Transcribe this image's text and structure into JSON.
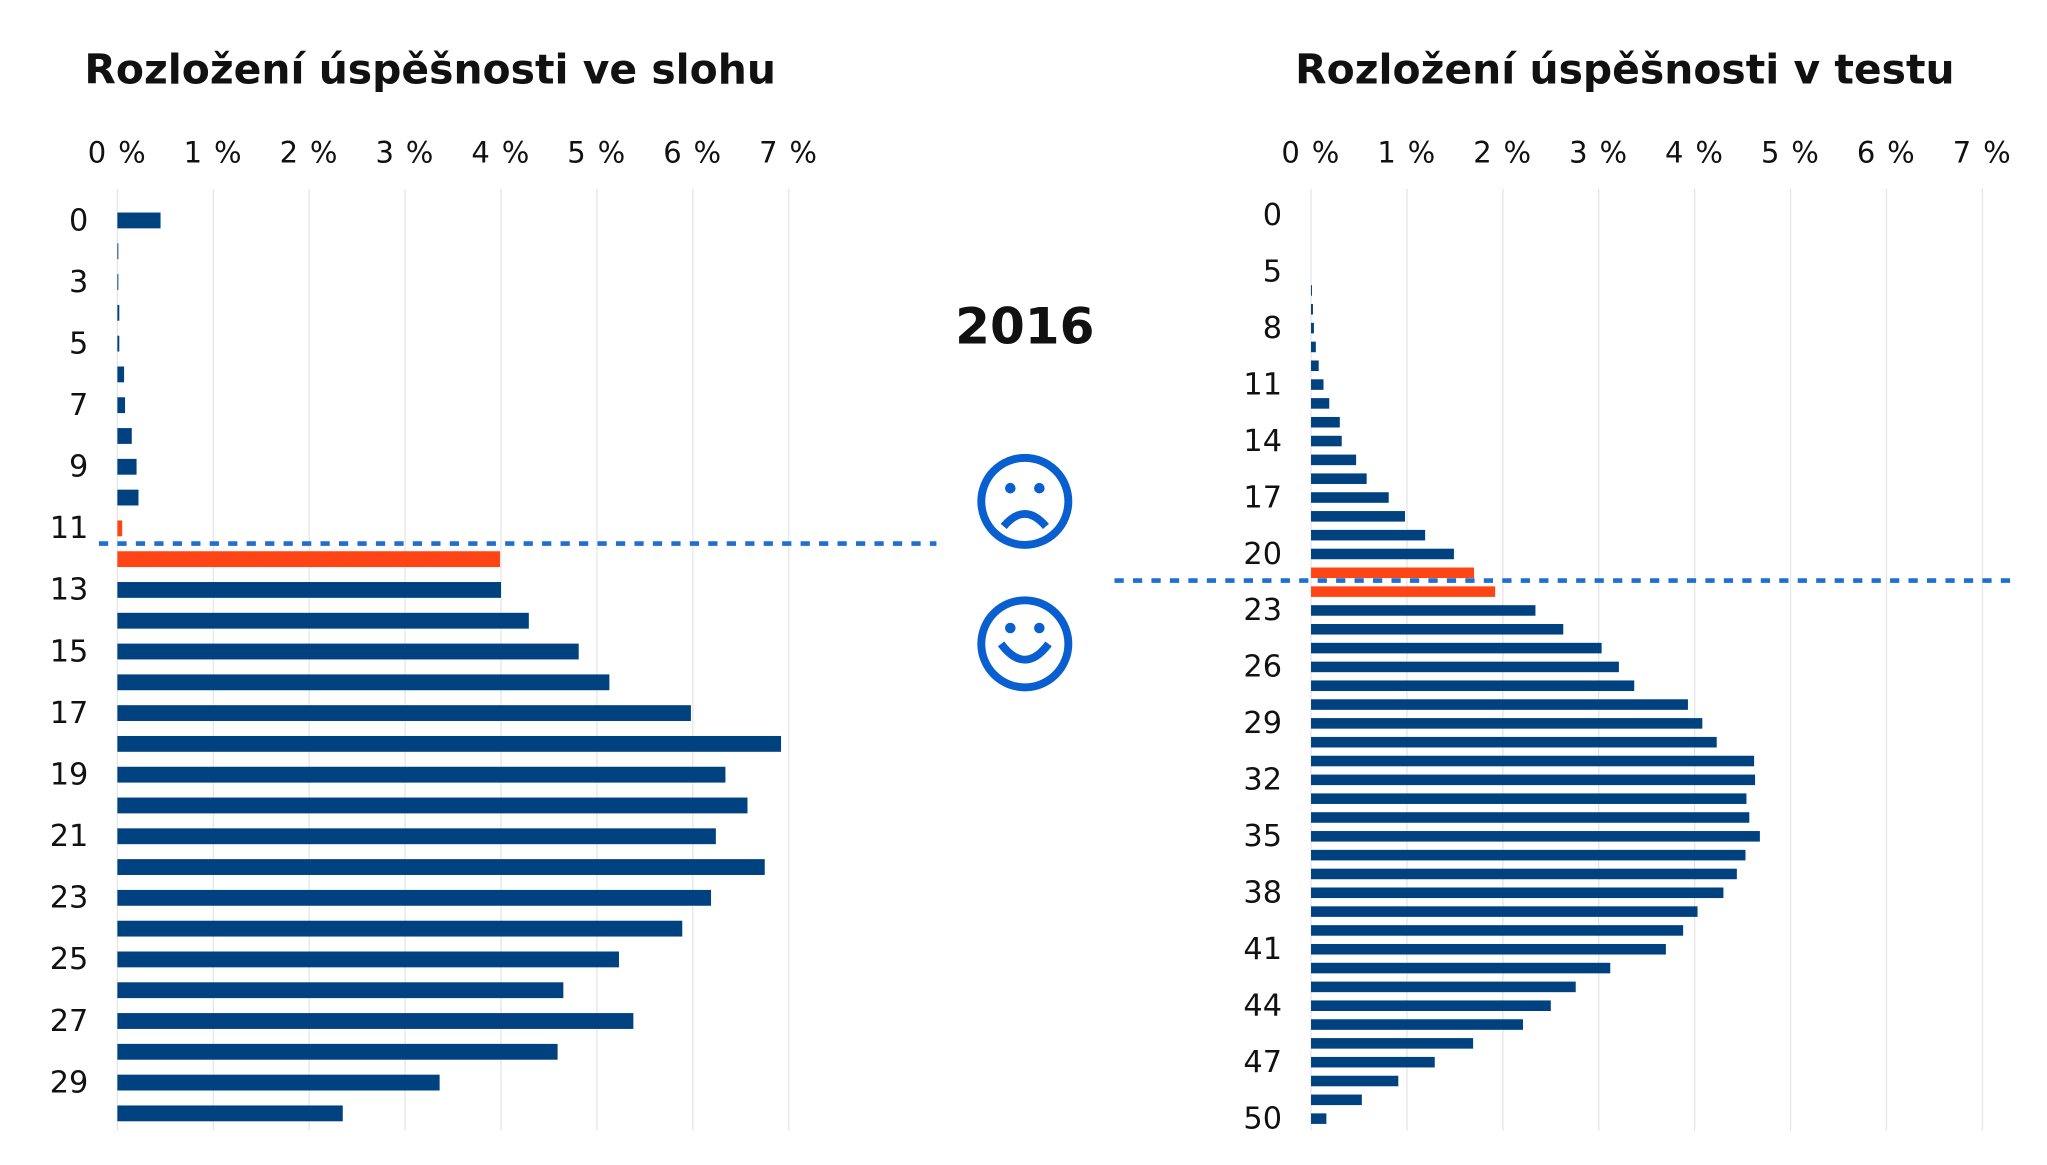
{
  "center_label": "2016",
  "chart_data": [
    {
      "type": "bar",
      "title": "Rozložení úspěšnosti ve slohu",
      "categories": [
        0,
        null,
        3,
        null,
        5,
        null,
        7,
        null,
        9,
        null,
        11,
        null,
        13,
        null,
        15,
        null,
        17,
        null,
        19,
        null,
        21,
        null,
        23,
        null,
        25,
        null,
        27,
        null,
        29,
        null
      ],
      "values": [
        0.45,
        0.01,
        0.01,
        0.02,
        0.02,
        0.07,
        0.08,
        0.15,
        0.2,
        0.22,
        0.05,
        3.99,
        4.0,
        4.29,
        4.81,
        5.13,
        5.98,
        6.92,
        6.34,
        6.57,
        6.24,
        6.75,
        6.19,
        5.89,
        5.23,
        4.65,
        5.38,
        4.59,
        3.36,
        2.35
      ],
      "colors": [
        "#00417f",
        "#00417f",
        "#00417f",
        "#00417f",
        "#00417f",
        "#00417f",
        "#00417f",
        "#00417f",
        "#00417f",
        "#00417f",
        "#ff4516",
        "#ff4516",
        "#00417f",
        "#00417f",
        "#00417f",
        "#00417f",
        "#00417f",
        "#00417f",
        "#00417f",
        "#00417f",
        "#00417f",
        "#00417f",
        "#00417f",
        "#00417f",
        "#00417f",
        "#00417f",
        "#00417f",
        "#00417f",
        "#00417f",
        "#00417f"
      ],
      "xlim": [
        0,
        7
      ],
      "xticks": [
        {
          "value": 0,
          "label": "0 %"
        },
        {
          "value": 1,
          "label": "1 %"
        },
        {
          "value": 2,
          "label": "2 %"
        },
        {
          "value": 3,
          "label": "3 %"
        },
        {
          "value": 4,
          "label": "4 %"
        },
        {
          "value": 5,
          "label": "5 %"
        },
        {
          "value": 6,
          "label": "6 %"
        },
        {
          "value": 7,
          "label": "7 %"
        }
      ],
      "grid": true
    },
    {
      "type": "bar",
      "title": "Rozložení úspěšnosti v testu",
      "categories": [
        0,
        null,
        null,
        5,
        null,
        null,
        8,
        null,
        null,
        11,
        null,
        null,
        14,
        null,
        null,
        17,
        null,
        null,
        20,
        null,
        null,
        23,
        null,
        null,
        26,
        null,
        null,
        29,
        null,
        null,
        32,
        null,
        null,
        35,
        null,
        null,
        38,
        null,
        null,
        41,
        null,
        null,
        44,
        null,
        null,
        47,
        null,
        null,
        50
      ],
      "values": [
        0,
        0,
        0,
        0,
        0.01,
        0.02,
        0.03,
        0.05,
        0.08,
        0.13,
        0.19,
        0.3,
        0.32,
        0.47,
        0.58,
        0.81,
        0.98,
        1.19,
        1.49,
        1.7,
        1.92,
        2.34,
        2.63,
        3.03,
        3.21,
        3.37,
        3.93,
        4.08,
        4.23,
        4.62,
        4.63,
        4.54,
        4.57,
        4.68,
        4.53,
        4.44,
        4.3,
        4.03,
        3.88,
        3.7,
        3.12,
        2.76,
        2.5,
        2.21,
        1.69,
        1.29,
        0.91,
        0.53,
        0.16
      ],
      "colors": [
        "#00417f",
        "#00417f",
        "#00417f",
        "#00417f",
        "#00417f",
        "#00417f",
        "#00417f",
        "#00417f",
        "#00417f",
        "#00417f",
        "#00417f",
        "#00417f",
        "#00417f",
        "#00417f",
        "#00417f",
        "#00417f",
        "#00417f",
        "#00417f",
        "#00417f",
        "#ff4516",
        "#ff4516",
        "#00417f",
        "#00417f",
        "#00417f",
        "#00417f",
        "#00417f",
        "#00417f",
        "#00417f",
        "#00417f",
        "#00417f",
        "#00417f",
        "#00417f",
        "#00417f",
        "#00417f",
        "#00417f",
        "#00417f",
        "#00417f",
        "#00417f",
        "#00417f",
        "#00417f",
        "#00417f",
        "#00417f",
        "#00417f",
        "#00417f",
        "#00417f",
        "#00417f",
        "#00417f",
        "#00417f",
        "#00417f"
      ],
      "xlim": [
        0,
        7
      ],
      "xticks": [
        {
          "value": 0,
          "label": "0 %"
        },
        {
          "value": 1,
          "label": "1 %"
        },
        {
          "value": 2,
          "label": "2 %"
        },
        {
          "value": 3,
          "label": "3 %"
        },
        {
          "value": 4,
          "label": "4 %"
        },
        {
          "value": 5,
          "label": "5 %"
        },
        {
          "value": 6,
          "label": "6 %"
        },
        {
          "value": 7,
          "label": "7 %"
        }
      ],
      "grid": true
    }
  ]
}
